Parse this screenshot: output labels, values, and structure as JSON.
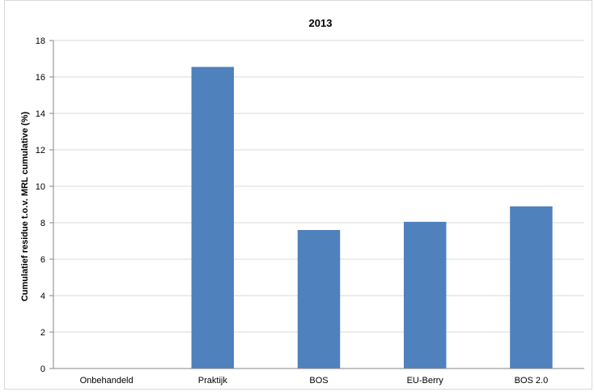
{
  "chart_data": {
    "type": "bar",
    "title": "2013",
    "xlabel": "",
    "ylabel": "Cumulatief residue t.o.v. MRL cumulative (%)",
    "categories": [
      "Onbehandeld",
      "Praktijk",
      "BOS",
      "EU-Berry",
      "BOS 2.0"
    ],
    "values": [
      0,
      16.55,
      7.6,
      8.05,
      8.9
    ],
    "ylim": [
      0,
      18
    ],
    "yticks": [
      0,
      2,
      4,
      6,
      8,
      10,
      12,
      14,
      16,
      18
    ],
    "grid": true,
    "legend": "none",
    "colors": {
      "bar": "#4f81bd",
      "grid": "#d9d9d9",
      "axis": "#868686"
    }
  }
}
